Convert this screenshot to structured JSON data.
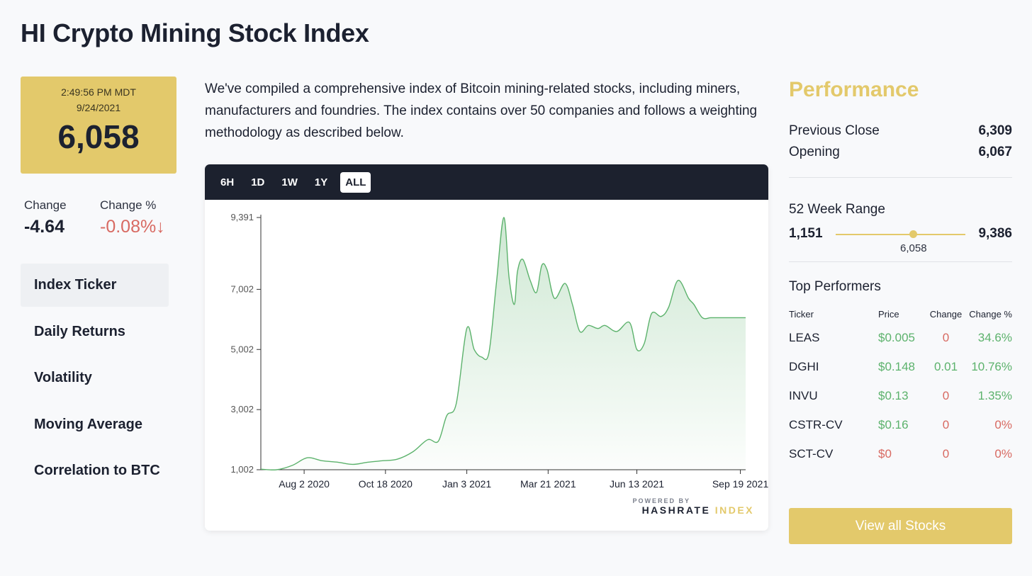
{
  "page": {
    "title": "HI Crypto Mining Stock Index"
  },
  "price_box": {
    "time": "2:49:56 PM MDT",
    "date": "9/24/2021",
    "value": "6,058"
  },
  "change": {
    "label": "Change",
    "value": "-4.64"
  },
  "change_pct": {
    "label": "Change %",
    "value": "-0.08%",
    "arrow": "↓"
  },
  "side_nav": {
    "items": [
      {
        "label": "Index Ticker"
      },
      {
        "label": "Daily Returns"
      },
      {
        "label": "Volatility"
      },
      {
        "label": "Moving Average"
      },
      {
        "label": "Correlation to BTC"
      }
    ]
  },
  "description": "We've compiled a comprehensive index of Bitcoin mining-related stocks, including miners, manufacturers and foundries. The index contains over 50 companies and follows a weighting methodology as described below.",
  "chart_toolbar": {
    "ranges": [
      {
        "label": "6H"
      },
      {
        "label": "1D"
      },
      {
        "label": "1W"
      },
      {
        "label": "1Y"
      },
      {
        "label": "ALL"
      }
    ]
  },
  "powered_by": {
    "line1": "POWERED BY",
    "brand_a": "HASHRATE",
    "brand_b": "INDEX"
  },
  "chart_data": {
    "type": "area",
    "title": "",
    "xlabel": "",
    "ylabel": "",
    "ylim": [
      1002,
      9391
    ],
    "y_ticks": [
      "1,002",
      "3,002",
      "5,002",
      "7,002",
      "9,391"
    ],
    "x_ticks": [
      "Aug 2 2020",
      "Oct 18 2020",
      "Jan 3 2021",
      "Mar 21 2021",
      "Jun 13 2021",
      "Sep 19 2021"
    ],
    "series": [
      {
        "name": "HI Crypto Mining Stock Index",
        "x": [
          "2020-06-22",
          "2020-07-07",
          "2020-07-22",
          "2020-08-05",
          "2020-08-19",
          "2020-09-03",
          "2020-09-17",
          "2020-10-01",
          "2020-10-15",
          "2020-10-29",
          "2020-11-13",
          "2020-11-27",
          "2020-12-07",
          "2020-12-15",
          "2020-12-24",
          "2021-01-03",
          "2021-01-10",
          "2021-01-17",
          "2021-01-24",
          "2021-01-31",
          "2021-02-07",
          "2021-02-12",
          "2021-02-17",
          "2021-02-20",
          "2021-02-25",
          "2021-03-04",
          "2021-03-10",
          "2021-03-15",
          "2021-03-20",
          "2021-03-27",
          "2021-04-06",
          "2021-04-13",
          "2021-04-20",
          "2021-04-28",
          "2021-05-07",
          "2021-05-14",
          "2021-05-25",
          "2021-06-06",
          "2021-06-13",
          "2021-06-20",
          "2021-06-27",
          "2021-07-06",
          "2021-07-13",
          "2021-07-22",
          "2021-08-01",
          "2021-08-06",
          "2021-08-14",
          "2021-08-22",
          "2021-08-31",
          "2021-09-05",
          "2021-09-14",
          "2021-09-24"
        ],
        "values": [
          1020,
          1002,
          1150,
          1400,
          1300,
          1250,
          1180,
          1250,
          1300,
          1350,
          1600,
          2000,
          1950,
          2800,
          3200,
          5700,
          5000,
          4750,
          4900,
          7200,
          9391,
          7400,
          6500,
          7600,
          8000,
          7300,
          6900,
          7800,
          7650,
          6700,
          7200,
          6500,
          5600,
          5800,
          5700,
          5800,
          5600,
          5900,
          5000,
          5200,
          6200,
          6100,
          6400,
          7300,
          6700,
          6500,
          6058,
          6058,
          6058,
          6058,
          6058,
          6058
        ]
      }
    ]
  },
  "performance": {
    "title": "Performance",
    "previous_close_label": "Previous Close",
    "previous_close": "6,309",
    "opening_label": "Opening",
    "opening": "6,067",
    "week_range_label": "52 Week Range",
    "week_low": "1,151",
    "week_high": "9,386",
    "week_current": "6,058",
    "week_position_fraction": 0.6
  },
  "top_performers": {
    "title": "Top Performers",
    "columns": [
      "Ticker",
      "Price",
      "Change",
      "Change %"
    ],
    "rows": [
      {
        "ticker": "LEAS",
        "price": "$0.005",
        "change": "0",
        "pct": "34.6%",
        "price_color": "green",
        "change_color": "red",
        "pct_color": "green"
      },
      {
        "ticker": "DGHI",
        "price": "$0.148",
        "change": "0.01",
        "pct": "10.76%",
        "price_color": "green",
        "change_color": "green",
        "pct_color": "green"
      },
      {
        "ticker": "INVU",
        "price": "$0.13",
        "change": "0",
        "pct": "1.35%",
        "price_color": "green",
        "change_color": "red",
        "pct_color": "green"
      },
      {
        "ticker": "CSTR-CV",
        "price": "$0.16",
        "change": "0",
        "pct": "0%",
        "price_color": "green",
        "change_color": "red",
        "pct_color": "red"
      },
      {
        "ticker": "SCT-CV",
        "price": "$0",
        "change": "0",
        "pct": "0%",
        "price_color": "red",
        "change_color": "red",
        "pct_color": "red"
      }
    ]
  },
  "view_all_button": {
    "label": "View all Stocks"
  },
  "colors": {
    "gold": "#e3c96b",
    "dark": "#1c212e",
    "green": "#5cb26c",
    "red": "#d86a62"
  }
}
